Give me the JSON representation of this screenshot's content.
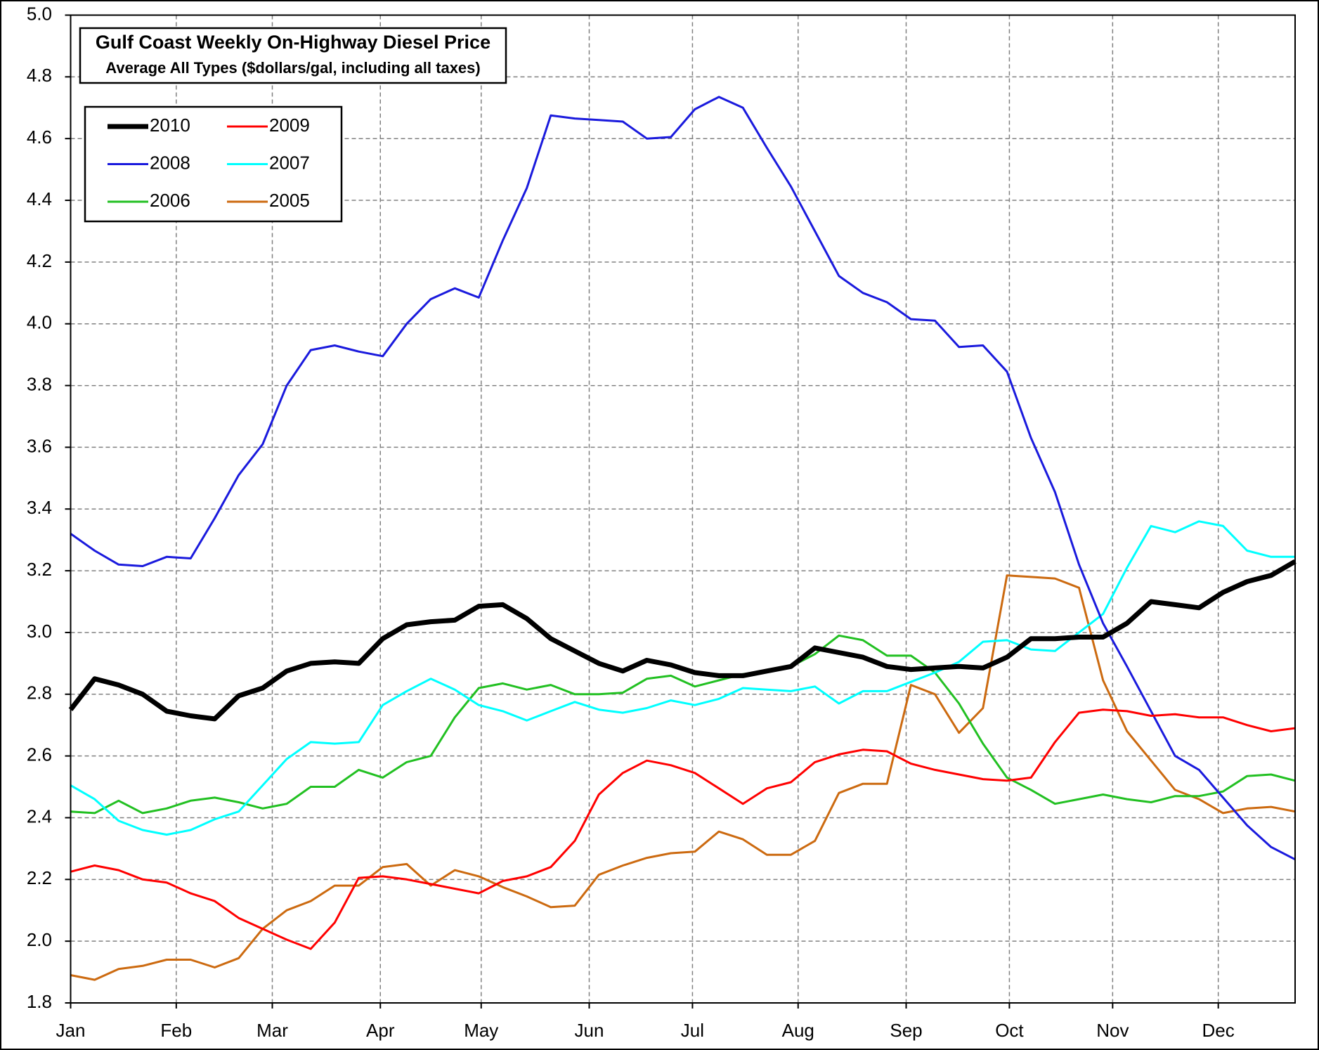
{
  "chart_data": {
    "type": "line",
    "title": "Gulf Coast Weekly On-Highway Diesel Price",
    "subtitle": "Average All Types ($dollars/gal, including all taxes)",
    "xlim": [
      0,
      51
    ],
    "xticks": [
      {
        "value": 0,
        "label": "Jan"
      },
      {
        "value": 4.4,
        "label": "Feb"
      },
      {
        "value": 8.4,
        "label": "Mar"
      },
      {
        "value": 12.9,
        "label": "Apr"
      },
      {
        "value": 17.1,
        "label": "May"
      },
      {
        "value": 21.6,
        "label": "Jun"
      },
      {
        "value": 25.9,
        "label": "Jul"
      },
      {
        "value": 30.3,
        "label": "Aug"
      },
      {
        "value": 34.8,
        "label": "Sep"
      },
      {
        "value": 39.1,
        "label": "Oct"
      },
      {
        "value": 43.4,
        "label": "Nov"
      },
      {
        "value": 47.8,
        "label": "Dec"
      }
    ],
    "ylim": [
      1.8,
      5.0
    ],
    "yticks": [
      1.8,
      {
        "value": 2,
        "label": "2.0"
      },
      2.2,
      2.4,
      2.6,
      2.8,
      {
        "value": 3,
        "label": "3.0"
      },
      3.2,
      3.4,
      3.6,
      3.8,
      {
        "value": 4,
        "label": "4.0"
      },
      4.2,
      4.4,
      4.6,
      4.8,
      {
        "value": 5,
        "label": "5.0"
      }
    ],
    "grid": true,
    "series": [
      {
        "name": "2010",
        "color": "#000000",
        "values": [
          2.75,
          2.85,
          2.83,
          2.8,
          2.745,
          2.73,
          2.72,
          2.795,
          2.82,
          2.875,
          2.9,
          2.905,
          2.9,
          2.98,
          3.025,
          3.035,
          3.04,
          3.085,
          3.09,
          3.045,
          2.98,
          2.94,
          2.9,
          2.875,
          2.91,
          2.895,
          2.87,
          2.86,
          2.86,
          2.875,
          2.89,
          2.95,
          2.935,
          2.92,
          2.89,
          2.88,
          2.885,
          2.89,
          2.885,
          2.92,
          2.98,
          2.98,
          2.985,
          2.985,
          3.03,
          3.1,
          3.09,
          3.08,
          3.13,
          3.165,
          3.185,
          3.23
        ]
      },
      {
        "name": "2009",
        "color": "#ff0000",
        "values": [
          2.225,
          2.245,
          2.23,
          2.2,
          2.19,
          2.155,
          2.13,
          2.075,
          2.04,
          2.005,
          1.975,
          2.06,
          2.205,
          2.21,
          2.2,
          2.185,
          2.17,
          2.155,
          2.195,
          2.21,
          2.24,
          2.325,
          2.475,
          2.545,
          2.585,
          2.57,
          2.545,
          2.495,
          2.445,
          2.495,
          2.515,
          2.58,
          2.605,
          2.62,
          2.615,
          2.575,
          2.555,
          2.54,
          2.525,
          2.52,
          2.53,
          2.645,
          2.74,
          2.75,
          2.745,
          2.73,
          2.735,
          2.725,
          2.725,
          2.7,
          2.68,
          2.69
        ]
      },
      {
        "name": "2008",
        "color": "#1a1add",
        "values": [
          3.32,
          3.265,
          3.22,
          3.215,
          3.245,
          3.24,
          3.37,
          3.51,
          3.61,
          3.8,
          3.915,
          3.93,
          3.91,
          3.895,
          4.0,
          4.08,
          4.115,
          4.085,
          4.27,
          4.44,
          4.675,
          4.665,
          4.66,
          4.655,
          4.6,
          4.605,
          4.695,
          4.735,
          4.7,
          4.57,
          4.445,
          4.3,
          4.155,
          4.1,
          4.07,
          4.015,
          4.01,
          3.925,
          3.93,
          3.845,
          3.63,
          3.455,
          3.22,
          3.03,
          2.89,
          2.745,
          2.6,
          2.555,
          2.465,
          2.375,
          2.305,
          2.265
        ]
      },
      {
        "name": "2007",
        "color": "#00ffff",
        "values": [
          2.505,
          2.46,
          2.39,
          2.36,
          2.345,
          2.36,
          2.395,
          2.42,
          2.505,
          2.59,
          2.645,
          2.64,
          2.645,
          2.765,
          2.81,
          2.85,
          2.815,
          2.765,
          2.745,
          2.715,
          2.745,
          2.775,
          2.75,
          2.74,
          2.755,
          2.78,
          2.765,
          2.785,
          2.82,
          2.815,
          2.81,
          2.825,
          2.77,
          2.81,
          2.81,
          2.84,
          2.87,
          2.905,
          2.97,
          2.975,
          2.945,
          2.94,
          3.0,
          3.06,
          3.21,
          3.345,
          3.325,
          3.36,
          3.345,
          3.265,
          3.245,
          3.245
        ]
      },
      {
        "name": "2006",
        "color": "#22c022",
        "values": [
          2.42,
          2.415,
          2.455,
          2.415,
          2.43,
          2.455,
          2.465,
          2.45,
          2.43,
          2.445,
          2.5,
          2.5,
          2.555,
          2.53,
          2.58,
          2.6,
          2.725,
          2.82,
          2.835,
          2.815,
          2.83,
          2.8,
          2.8,
          2.805,
          2.85,
          2.86,
          2.825,
          2.845,
          2.865,
          2.875,
          2.89,
          2.93,
          2.99,
          2.975,
          2.925,
          2.925,
          2.87,
          2.77,
          2.64,
          2.53,
          2.49,
          2.445,
          2.46,
          2.475,
          2.46,
          2.45,
          2.47,
          2.47,
          2.485,
          2.535,
          2.54,
          2.52
        ]
      },
      {
        "name": "2005",
        "color": "#cc6a10",
        "values": [
          1.89,
          1.875,
          1.91,
          1.92,
          1.94,
          1.94,
          1.915,
          1.945,
          2.04,
          2.1,
          2.13,
          2.18,
          2.18,
          2.24,
          2.25,
          2.18,
          2.23,
          2.21,
          2.175,
          2.145,
          2.11,
          2.115,
          2.215,
          2.245,
          2.27,
          2.285,
          2.29,
          2.355,
          2.33,
          2.28,
          2.28,
          2.325,
          2.48,
          2.51,
          2.51,
          2.83,
          2.8,
          2.675,
          2.755,
          3.185,
          3.18,
          3.175,
          3.145,
          2.845,
          2.68,
          2.585,
          2.49,
          2.46,
          2.415,
          2.43,
          2.435,
          2.42
        ]
      }
    ]
  }
}
